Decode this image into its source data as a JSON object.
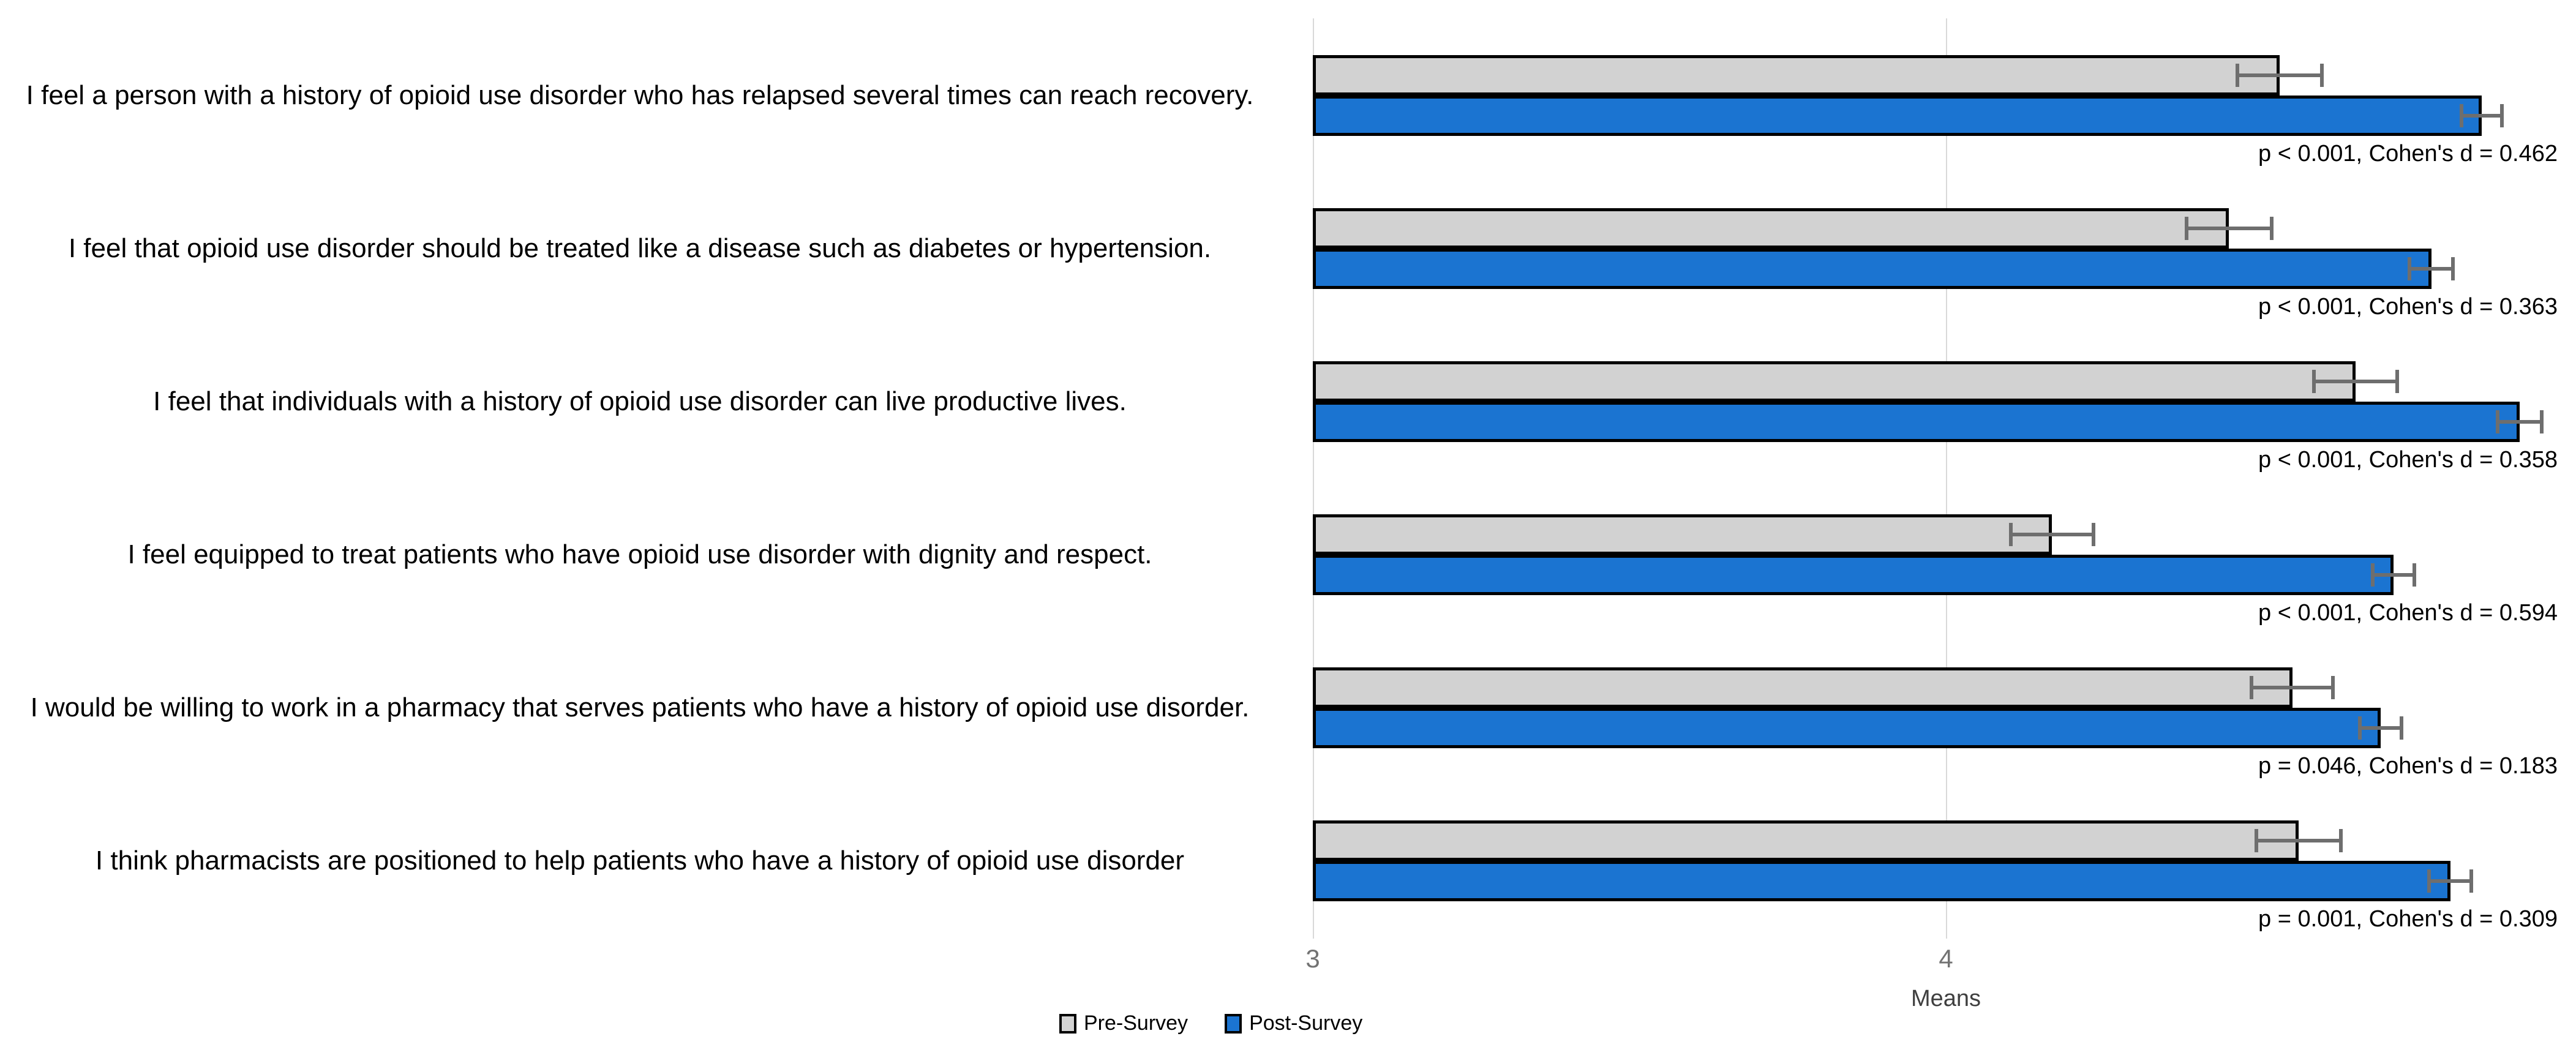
{
  "chart_data": {
    "type": "bar",
    "orientation": "horizontal",
    "title": "",
    "xlabel": "Means",
    "x_ticks": [
      "3",
      "4"
    ],
    "xlim": [
      3,
      5
    ],
    "grid": "vertical-on",
    "legend_position": "bottom",
    "categories": [
      "I feel a person with a history of opioid use disorder who has relapsed several times can reach recovery.",
      "I feel that opioid use disorder should be treated like a disease such as diabetes or hypertension.",
      "I feel that individuals with a history of opioid use disorder can live productive lives.",
      "I feel equipped to treat patients who have opioid use disorder with dignity and respect.",
      "I would be willing to work in a pharmacy that serves patients who have a history of opioid use disorder.",
      "I think pharmacists are positioned to help patients who have a history of opioid use disorder"
    ],
    "series": [
      {
        "name": "Pre-Survey",
        "color": "#D2D2D2",
        "values": [
          4.53,
          4.45,
          4.65,
          4.17,
          4.55,
          4.56
        ],
        "errors": [
          0.07,
          0.07,
          0.069,
          0.068,
          0.067,
          0.07
        ]
      },
      {
        "name": "Post-Survey",
        "color": "#1B74D1",
        "values": [
          4.85,
          4.77,
          4.91,
          4.71,
          4.69,
          4.8
        ],
        "errors": [
          0.035,
          0.037,
          0.038,
          0.036,
          0.036,
          0.036
        ]
      }
    ],
    "annotations": [
      "p < 0.001, Cohen's d = 0.462",
      "p < 0.001, Cohen's d = 0.363",
      "p < 0.001, Cohen's d = 0.358",
      "p < 0.001, Cohen's d = 0.594",
      "p = 0.046, Cohen's d = 0.183",
      "p = 0.001, Cohen's d = 0.309"
    ],
    "legend": [
      {
        "name": "Pre-Survey",
        "color": "#D2D2D2"
      },
      {
        "name": "Post-Survey",
        "color": "#1B74D1"
      }
    ]
  },
  "colors": {
    "pre_bar": "#D2D2D2",
    "post_bar": "#1B74D1",
    "bar_border": "#000000",
    "error_bar": "#6E6E6E",
    "gridline": "#D9D9D9",
    "tick_label": "#737373",
    "axis_title": "#3F3F3F",
    "background": "#FFFFFF"
  }
}
